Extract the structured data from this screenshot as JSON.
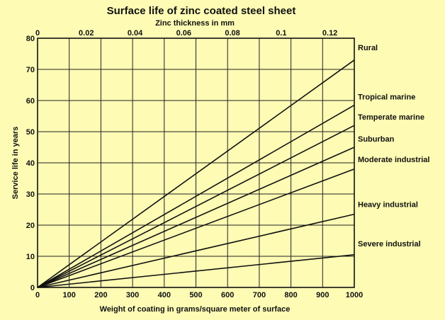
{
  "chart_data": {
    "type": "line",
    "title": "Surface life of zinc coated steel sheet",
    "xlabel": "Weight of coating in grams/square meter of surface",
    "x2label": "Zinc thickness in mm",
    "ylabel": "Service life in years",
    "xlim": [
      0,
      1000
    ],
    "ylim": [
      0,
      80
    ],
    "x2lim": [
      0,
      0.13
    ],
    "x_ticks": [
      0,
      100,
      200,
      300,
      400,
      500,
      600,
      700,
      800,
      900,
      1000
    ],
    "y_ticks": [
      0,
      10,
      20,
      30,
      40,
      50,
      60,
      70,
      80
    ],
    "x2_ticks": [
      0,
      0.02,
      0.04,
      0.06,
      0.08,
      0.1,
      0.12
    ],
    "x2_tick_labels": [
      "0",
      "0.02",
      "0.04",
      "0.06",
      "0.08",
      "0.1",
      "0.12"
    ],
    "grid": true,
    "series": [
      {
        "name": "Rural",
        "x": [
          0,
          1000
        ],
        "y": [
          0,
          73
        ]
      },
      {
        "name": "Tropical marine",
        "x": [
          0,
          1000
        ],
        "y": [
          0,
          58.5
        ]
      },
      {
        "name": "Temperate marine",
        "x": [
          0,
          1000
        ],
        "y": [
          0,
          52
        ]
      },
      {
        "name": "Suburban",
        "x": [
          0,
          1000
        ],
        "y": [
          0,
          45
        ]
      },
      {
        "name": "Moderate industrial",
        "x": [
          0,
          1000
        ],
        "y": [
          0,
          38
        ]
      },
      {
        "name": "Heavy industrial",
        "x": [
          0,
          1000
        ],
        "y": [
          0,
          23.5
        ]
      },
      {
        "name": "Severe industrial",
        "x": [
          0,
          1000
        ],
        "y": [
          0,
          10.5
        ]
      }
    ]
  }
}
